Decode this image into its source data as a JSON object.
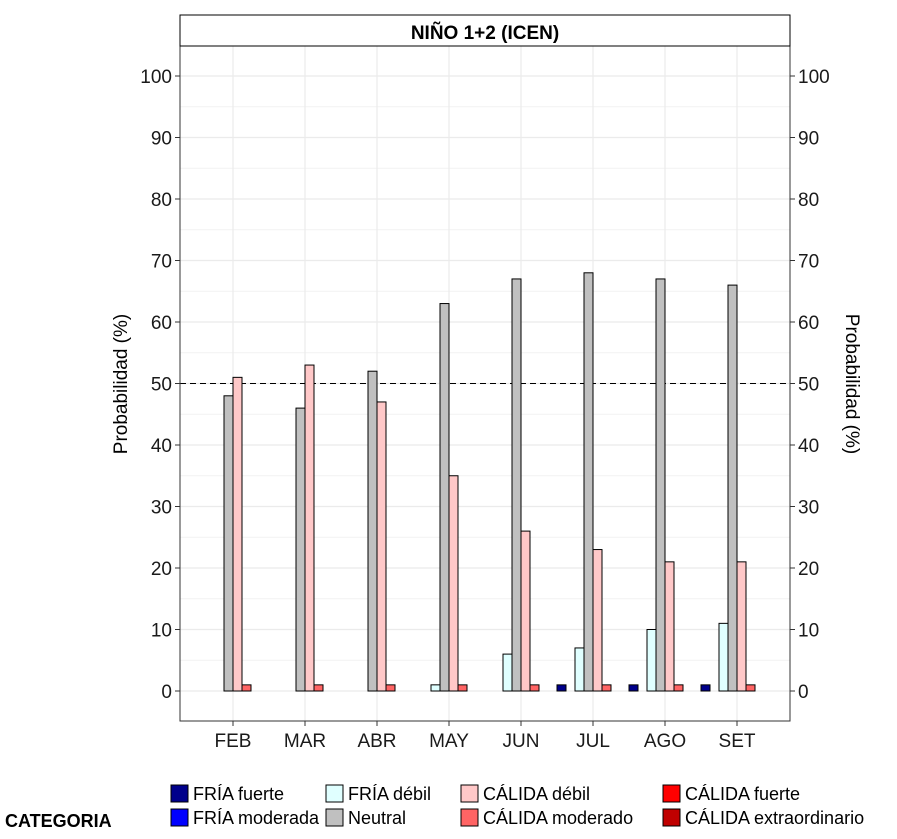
{
  "chart_data": {
    "type": "bar",
    "title": "NIÑO 1+2 (ICEN)",
    "xlabel": "",
    "ylabel": "Probabilidad (%)",
    "ylabel_right": "Probabilidad (%)",
    "ylim": [
      -5,
      105
    ],
    "yticks": [
      0,
      10,
      20,
      30,
      40,
      50,
      60,
      70,
      80,
      90,
      100
    ],
    "reference_line": 50,
    "grid": true,
    "legend_position": "bottom",
    "legend_title": "CATEGORIA",
    "categories": [
      "FEB",
      "MAR",
      "ABR",
      "MAY",
      "JUN",
      "JUL",
      "AGO",
      "SET"
    ],
    "series": [
      {
        "name": "FRÍA fuerte",
        "color": "#00008b",
        "values": [
          0,
          0,
          0,
          0,
          0,
          1,
          1,
          1
        ]
      },
      {
        "name": "FRÍA moderada",
        "color": "#0000ff",
        "values": [
          0,
          0,
          0,
          0,
          0,
          0,
          0,
          0
        ]
      },
      {
        "name": "FRÍA débil",
        "color": "#e0ffff",
        "values": [
          0,
          0,
          0,
          1,
          6,
          7,
          10,
          11
        ]
      },
      {
        "name": "Neutral",
        "color": "#c0c0c0",
        "values": [
          48,
          46,
          52,
          63,
          67,
          68,
          67,
          66
        ]
      },
      {
        "name": "CÁLIDA débil",
        "color": "#ffc8c8",
        "values": [
          51,
          53,
          47,
          35,
          26,
          23,
          21,
          21
        ]
      },
      {
        "name": "CÁLIDA moderado",
        "color": "#ff6464",
        "values": [
          1,
          1,
          1,
          1,
          1,
          1,
          1,
          1
        ]
      },
      {
        "name": "CÁLIDA fuerte",
        "color": "#ff0000",
        "values": [
          0,
          0,
          0,
          0,
          0,
          0,
          0,
          0
        ]
      },
      {
        "name": "CÁLIDA extraordinario",
        "color": "#c00000",
        "values": [
          0,
          0,
          0,
          0,
          0,
          0,
          0,
          0
        ]
      }
    ],
    "legend_order": [
      "FRÍA fuerte",
      "FRÍA moderada",
      "FRÍA débil",
      "Neutral",
      "CÁLIDA débil",
      "CÁLIDA moderado",
      "CÁLIDA fuerte",
      "CÁLIDA extraordinario"
    ]
  }
}
